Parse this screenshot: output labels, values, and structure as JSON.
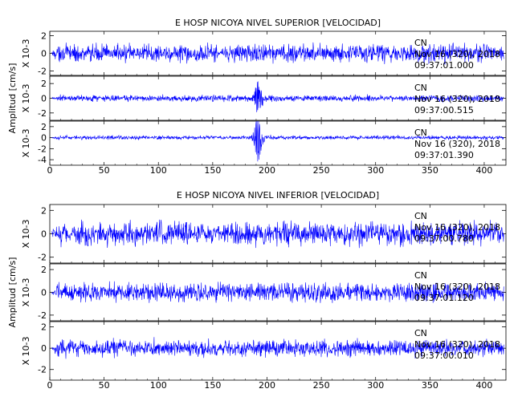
{
  "chart_data": [
    {
      "type": "line",
      "title": "E HOSP NICOYA NIVEL SUPERIOR [VELOCIDAD]",
      "ylabel": "Amplitud [cm/s]",
      "xlabel": "",
      "xlim": [
        0,
        420
      ],
      "x_ticks": [
        0,
        50,
        100,
        150,
        200,
        250,
        300,
        350,
        400
      ],
      "multiplier_label": "X 10-3",
      "trace_color": "#0000ff",
      "grid": false,
      "traces": [
        {
          "channel": "CN",
          "date": "Nov 16 (320), 2018",
          "time": "09:37:01.000",
          "ylim": [
            -2.5,
            2.5
          ],
          "y_ticks": [
            2,
            0,
            -2
          ],
          "amplitude": 1.4,
          "event": {
            "x": 192,
            "amplitude": 0.3
          }
        },
        {
          "channel": "CN",
          "date": "Nov 16 (320), 2018",
          "time": "09:37:00.515",
          "ylim": [
            -3,
            3
          ],
          "y_ticks": [
            2,
            0,
            -2
          ],
          "amplitude": 0.6,
          "event": {
            "x": 192,
            "amplitude": 2.6
          }
        },
        {
          "channel": "CN",
          "date": "Nov 16 (320), 2018",
          "time": "09:37:01.390",
          "ylim": [
            -5,
            3
          ],
          "y_ticks": [
            2,
            0,
            -2,
            -4
          ],
          "amplitude": 0.5,
          "event": {
            "x": 192,
            "amplitude": 4.5
          }
        }
      ]
    },
    {
      "type": "line",
      "title": "E HOSP NICOYA NIVEL INFERIOR [VELOCIDAD]",
      "ylabel": "Amplitud [cm/s]",
      "xlabel": "",
      "xlim": [
        0,
        420
      ],
      "x_ticks": [
        0,
        50,
        100,
        150,
        200,
        250,
        300,
        350,
        400
      ],
      "multiplier_label": "X 10-3",
      "trace_color": "#0000ff",
      "grid": false,
      "traces": [
        {
          "channel": "CN",
          "date": "Nov 16 (320), 2018",
          "time": "09:37:00.780",
          "ylim": [
            -2.5,
            2.5
          ],
          "y_ticks": [
            2,
            0,
            -2
          ],
          "amplitude": 1.4,
          "event": {
            "x": 192,
            "amplitude": 0.2
          }
        },
        {
          "channel": "CN",
          "date": "Nov 16 (320), 2018",
          "time": "09:37:01.120",
          "ylim": [
            -2.5,
            2.5
          ],
          "y_ticks": [
            2,
            0,
            -2
          ],
          "amplitude": 1.1,
          "event": {
            "x": 192,
            "amplitude": 0.2
          }
        },
        {
          "channel": "CN",
          "date": "Nov 16 (320), 2018",
          "time": "09:37:00.010",
          "ylim": [
            -3,
            2.5
          ],
          "y_ticks": [
            2,
            0,
            -2
          ],
          "amplitude": 1.1,
          "event": {
            "x": 192,
            "amplitude": 0.2
          }
        }
      ]
    }
  ]
}
